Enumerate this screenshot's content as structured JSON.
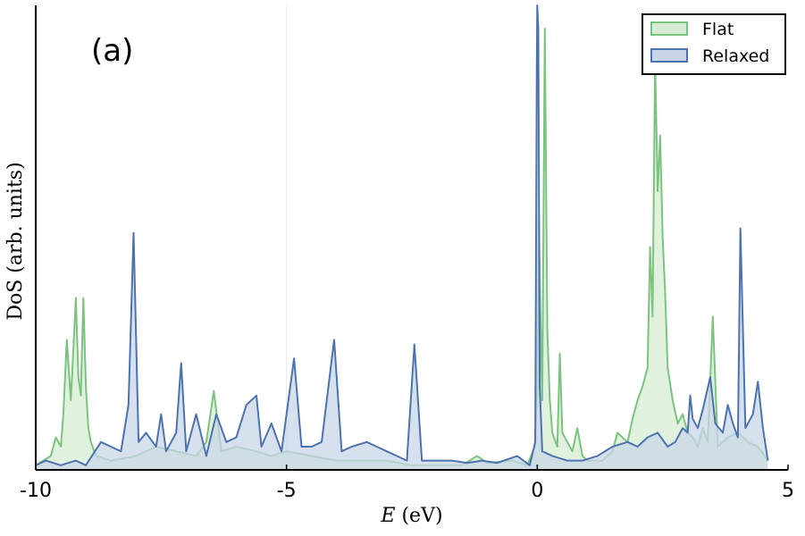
{
  "chart_data": {
    "type": "area",
    "panel_label": "(a)",
    "xlabel_var": "E",
    "xlabel_unit": " (eV)",
    "ylabel": "DoS (arb. units)",
    "xlim": [
      -10,
      5
    ],
    "ylim": [
      0,
      1
    ],
    "xticks": [
      -10,
      -5,
      0,
      5
    ],
    "xtick_labels": [
      "-10",
      "-5",
      "0",
      "5"
    ],
    "yticks": [],
    "vertical_reference_line": -5,
    "legend_position": "top-right",
    "series": [
      {
        "name": "Flat",
        "color": "#7bc47f",
        "fill": "#d6ecd3",
        "peaks": [
          [
            -10.0,
            0.01
          ],
          [
            -9.7,
            0.03
          ],
          [
            -9.6,
            0.07
          ],
          [
            -9.5,
            0.05
          ],
          [
            -9.45,
            0.12
          ],
          [
            -9.38,
            0.28
          ],
          [
            -9.3,
            0.15
          ],
          [
            -9.2,
            0.37
          ],
          [
            -9.15,
            0.2
          ],
          [
            -9.1,
            0.16
          ],
          [
            -9.05,
            0.37
          ],
          [
            -9.0,
            0.18
          ],
          [
            -8.95,
            0.09
          ],
          [
            -8.9,
            0.06
          ],
          [
            -8.8,
            0.03
          ],
          [
            -8.5,
            0.02
          ],
          [
            -8.0,
            0.03
          ],
          [
            -7.6,
            0.05
          ],
          [
            -7.2,
            0.04
          ],
          [
            -6.8,
            0.03
          ],
          [
            -6.6,
            0.06
          ],
          [
            -6.45,
            0.17
          ],
          [
            -6.3,
            0.04
          ],
          [
            -6.0,
            0.05
          ],
          [
            -5.6,
            0.04
          ],
          [
            -5.3,
            0.03
          ],
          [
            -5.0,
            0.04
          ],
          [
            -4.5,
            0.03
          ],
          [
            -4.0,
            0.02
          ],
          [
            -3.5,
            0.02
          ],
          [
            -3.0,
            0.02
          ],
          [
            -2.5,
            0.01
          ],
          [
            -2.0,
            0.01
          ],
          [
            -1.5,
            0.01
          ],
          [
            -1.2,
            0.03
          ],
          [
            -1.0,
            0.015
          ],
          [
            -0.5,
            0.02
          ],
          [
            -0.2,
            0.01
          ],
          [
            -0.05,
            0.05
          ],
          [
            0.0,
            0.18
          ],
          [
            0.03,
            0.55
          ],
          [
            0.06,
            0.35
          ],
          [
            0.1,
            0.15
          ],
          [
            0.15,
            0.95
          ],
          [
            0.2,
            0.3
          ],
          [
            0.25,
            0.15
          ],
          [
            0.3,
            0.08
          ],
          [
            0.4,
            0.05
          ],
          [
            0.45,
            0.25
          ],
          [
            0.5,
            0.08
          ],
          [
            0.6,
            0.06
          ],
          [
            0.7,
            0.04
          ],
          [
            0.8,
            0.09
          ],
          [
            0.9,
            0.03
          ],
          [
            1.0,
            0.02
          ],
          [
            1.3,
            0.02
          ],
          [
            1.5,
            0.04
          ],
          [
            1.6,
            0.08
          ],
          [
            1.8,
            0.06
          ],
          [
            1.9,
            0.11
          ],
          [
            2.0,
            0.15
          ],
          [
            2.1,
            0.18
          ],
          [
            2.2,
            0.22
          ],
          [
            2.25,
            0.48
          ],
          [
            2.3,
            0.33
          ],
          [
            2.35,
            0.88
          ],
          [
            2.4,
            0.6
          ],
          [
            2.45,
            0.72
          ],
          [
            2.5,
            0.5
          ],
          [
            2.55,
            0.38
          ],
          [
            2.6,
            0.22
          ],
          [
            2.7,
            0.15
          ],
          [
            2.8,
            0.1
          ],
          [
            2.9,
            0.12
          ],
          [
            3.0,
            0.08
          ],
          [
            3.1,
            0.07
          ],
          [
            3.2,
            0.05
          ],
          [
            3.3,
            0.09
          ],
          [
            3.4,
            0.06
          ],
          [
            3.5,
            0.33
          ],
          [
            3.6,
            0.05
          ],
          [
            3.8,
            0.07
          ],
          [
            4.0,
            0.08
          ],
          [
            4.2,
            0.06
          ],
          [
            4.4,
            0.05
          ],
          [
            4.6,
            0.02
          ]
        ]
      },
      {
        "name": "Relaxed",
        "color": "#4c73b0",
        "fill": "#c9d5e7",
        "peaks": [
          [
            -10.0,
            0.01
          ],
          [
            -9.8,
            0.02
          ],
          [
            -9.5,
            0.01
          ],
          [
            -9.2,
            0.02
          ],
          [
            -9.0,
            0.01
          ],
          [
            -8.7,
            0.06
          ],
          [
            -8.5,
            0.05
          ],
          [
            -8.3,
            0.04
          ],
          [
            -8.15,
            0.14
          ],
          [
            -8.05,
            0.51
          ],
          [
            -7.95,
            0.06
          ],
          [
            -7.8,
            0.08
          ],
          [
            -7.6,
            0.05
          ],
          [
            -7.5,
            0.12
          ],
          [
            -7.4,
            0.04
          ],
          [
            -7.2,
            0.08
          ],
          [
            -7.1,
            0.23
          ],
          [
            -7.0,
            0.04
          ],
          [
            -6.8,
            0.12
          ],
          [
            -6.6,
            0.03
          ],
          [
            -6.4,
            0.12
          ],
          [
            -6.2,
            0.06
          ],
          [
            -6.0,
            0.07
          ],
          [
            -5.8,
            0.14
          ],
          [
            -5.6,
            0.16
          ],
          [
            -5.5,
            0.05
          ],
          [
            -5.3,
            0.1
          ],
          [
            -5.1,
            0.04
          ],
          [
            -4.85,
            0.24
          ],
          [
            -4.7,
            0.05
          ],
          [
            -4.5,
            0.05
          ],
          [
            -4.3,
            0.06
          ],
          [
            -4.05,
            0.28
          ],
          [
            -3.9,
            0.04
          ],
          [
            -3.7,
            0.05
          ],
          [
            -3.4,
            0.06
          ],
          [
            -3.2,
            0.05
          ],
          [
            -3.0,
            0.04
          ],
          [
            -2.8,
            0.03
          ],
          [
            -2.6,
            0.02
          ],
          [
            -2.45,
            0.27
          ],
          [
            -2.3,
            0.02
          ],
          [
            -2.0,
            0.02
          ],
          [
            -1.7,
            0.02
          ],
          [
            -1.4,
            0.015
          ],
          [
            -1.1,
            0.02
          ],
          [
            -0.8,
            0.015
          ],
          [
            -0.4,
            0.03
          ],
          [
            -0.15,
            0.01
          ],
          [
            -0.04,
            0.06
          ],
          [
            -0.01,
            0.86
          ],
          [
            0.0,
            1.0
          ],
          [
            0.02,
            0.95
          ],
          [
            0.05,
            0.18
          ],
          [
            0.1,
            0.04
          ],
          [
            0.3,
            0.03
          ],
          [
            0.6,
            0.02
          ],
          [
            0.9,
            0.02
          ],
          [
            1.2,
            0.03
          ],
          [
            1.5,
            0.05
          ],
          [
            1.8,
            0.06
          ],
          [
            2.0,
            0.05
          ],
          [
            2.2,
            0.07
          ],
          [
            2.4,
            0.08
          ],
          [
            2.6,
            0.05
          ],
          [
            2.75,
            0.06
          ],
          [
            2.9,
            0.09
          ],
          [
            3.0,
            0.08
          ],
          [
            3.05,
            0.16
          ],
          [
            3.1,
            0.11
          ],
          [
            3.2,
            0.09
          ],
          [
            3.3,
            0.13
          ],
          [
            3.45,
            0.2
          ],
          [
            3.55,
            0.1
          ],
          [
            3.7,
            0.08
          ],
          [
            3.8,
            0.14
          ],
          [
            3.9,
            0.1
          ],
          [
            4.0,
            0.07
          ],
          [
            4.05,
            0.52
          ],
          [
            4.15,
            0.09
          ],
          [
            4.3,
            0.12
          ],
          [
            4.4,
            0.19
          ],
          [
            4.5,
            0.09
          ],
          [
            4.6,
            0.02
          ]
        ]
      }
    ]
  }
}
